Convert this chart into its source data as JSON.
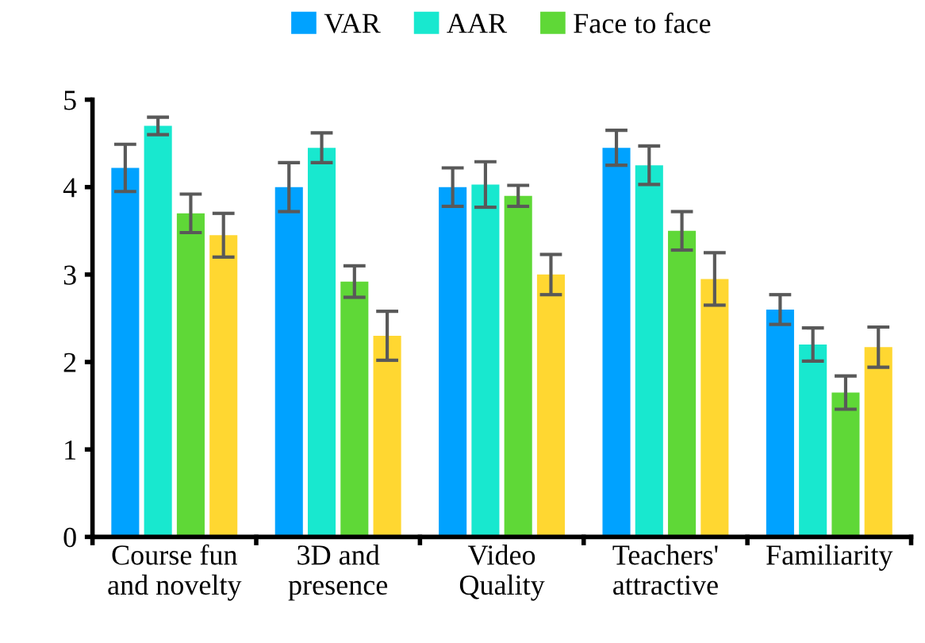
{
  "chart_data": {
    "type": "bar",
    "categories": [
      "Course fun\nand novelty",
      "3D and\npresence",
      "Video\nQuality",
      "Teachers'\nattractive",
      "Familiarity"
    ],
    "series": [
      {
        "name": "VAR",
        "color": "#00a2ff",
        "values": [
          4.22,
          4.0,
          4.0,
          4.45,
          2.6
        ],
        "errors": [
          0.27,
          0.28,
          0.22,
          0.2,
          0.17
        ]
      },
      {
        "name": "AAR",
        "color": "#18e8cf",
        "values": [
          4.7,
          4.45,
          4.03,
          4.25,
          2.2
        ],
        "errors": [
          0.1,
          0.17,
          0.26,
          0.22,
          0.19
        ]
      },
      {
        "name": "Face to face",
        "color": "#5fd837",
        "values": [
          3.7,
          2.92,
          3.9,
          3.5,
          1.65
        ],
        "errors": [
          0.22,
          0.18,
          0.12,
          0.22,
          0.19
        ]
      },
      {
        "color": "#ffd731",
        "values": [
          3.45,
          2.3,
          3.0,
          2.95,
          2.17
        ],
        "errors": [
          0.25,
          0.28,
          0.23,
          0.3,
          0.23
        ]
      }
    ],
    "ylim": [
      0,
      5
    ],
    "yticks": [
      0,
      1,
      2,
      3,
      4,
      5
    ],
    "grid": false,
    "legend": "top"
  }
}
